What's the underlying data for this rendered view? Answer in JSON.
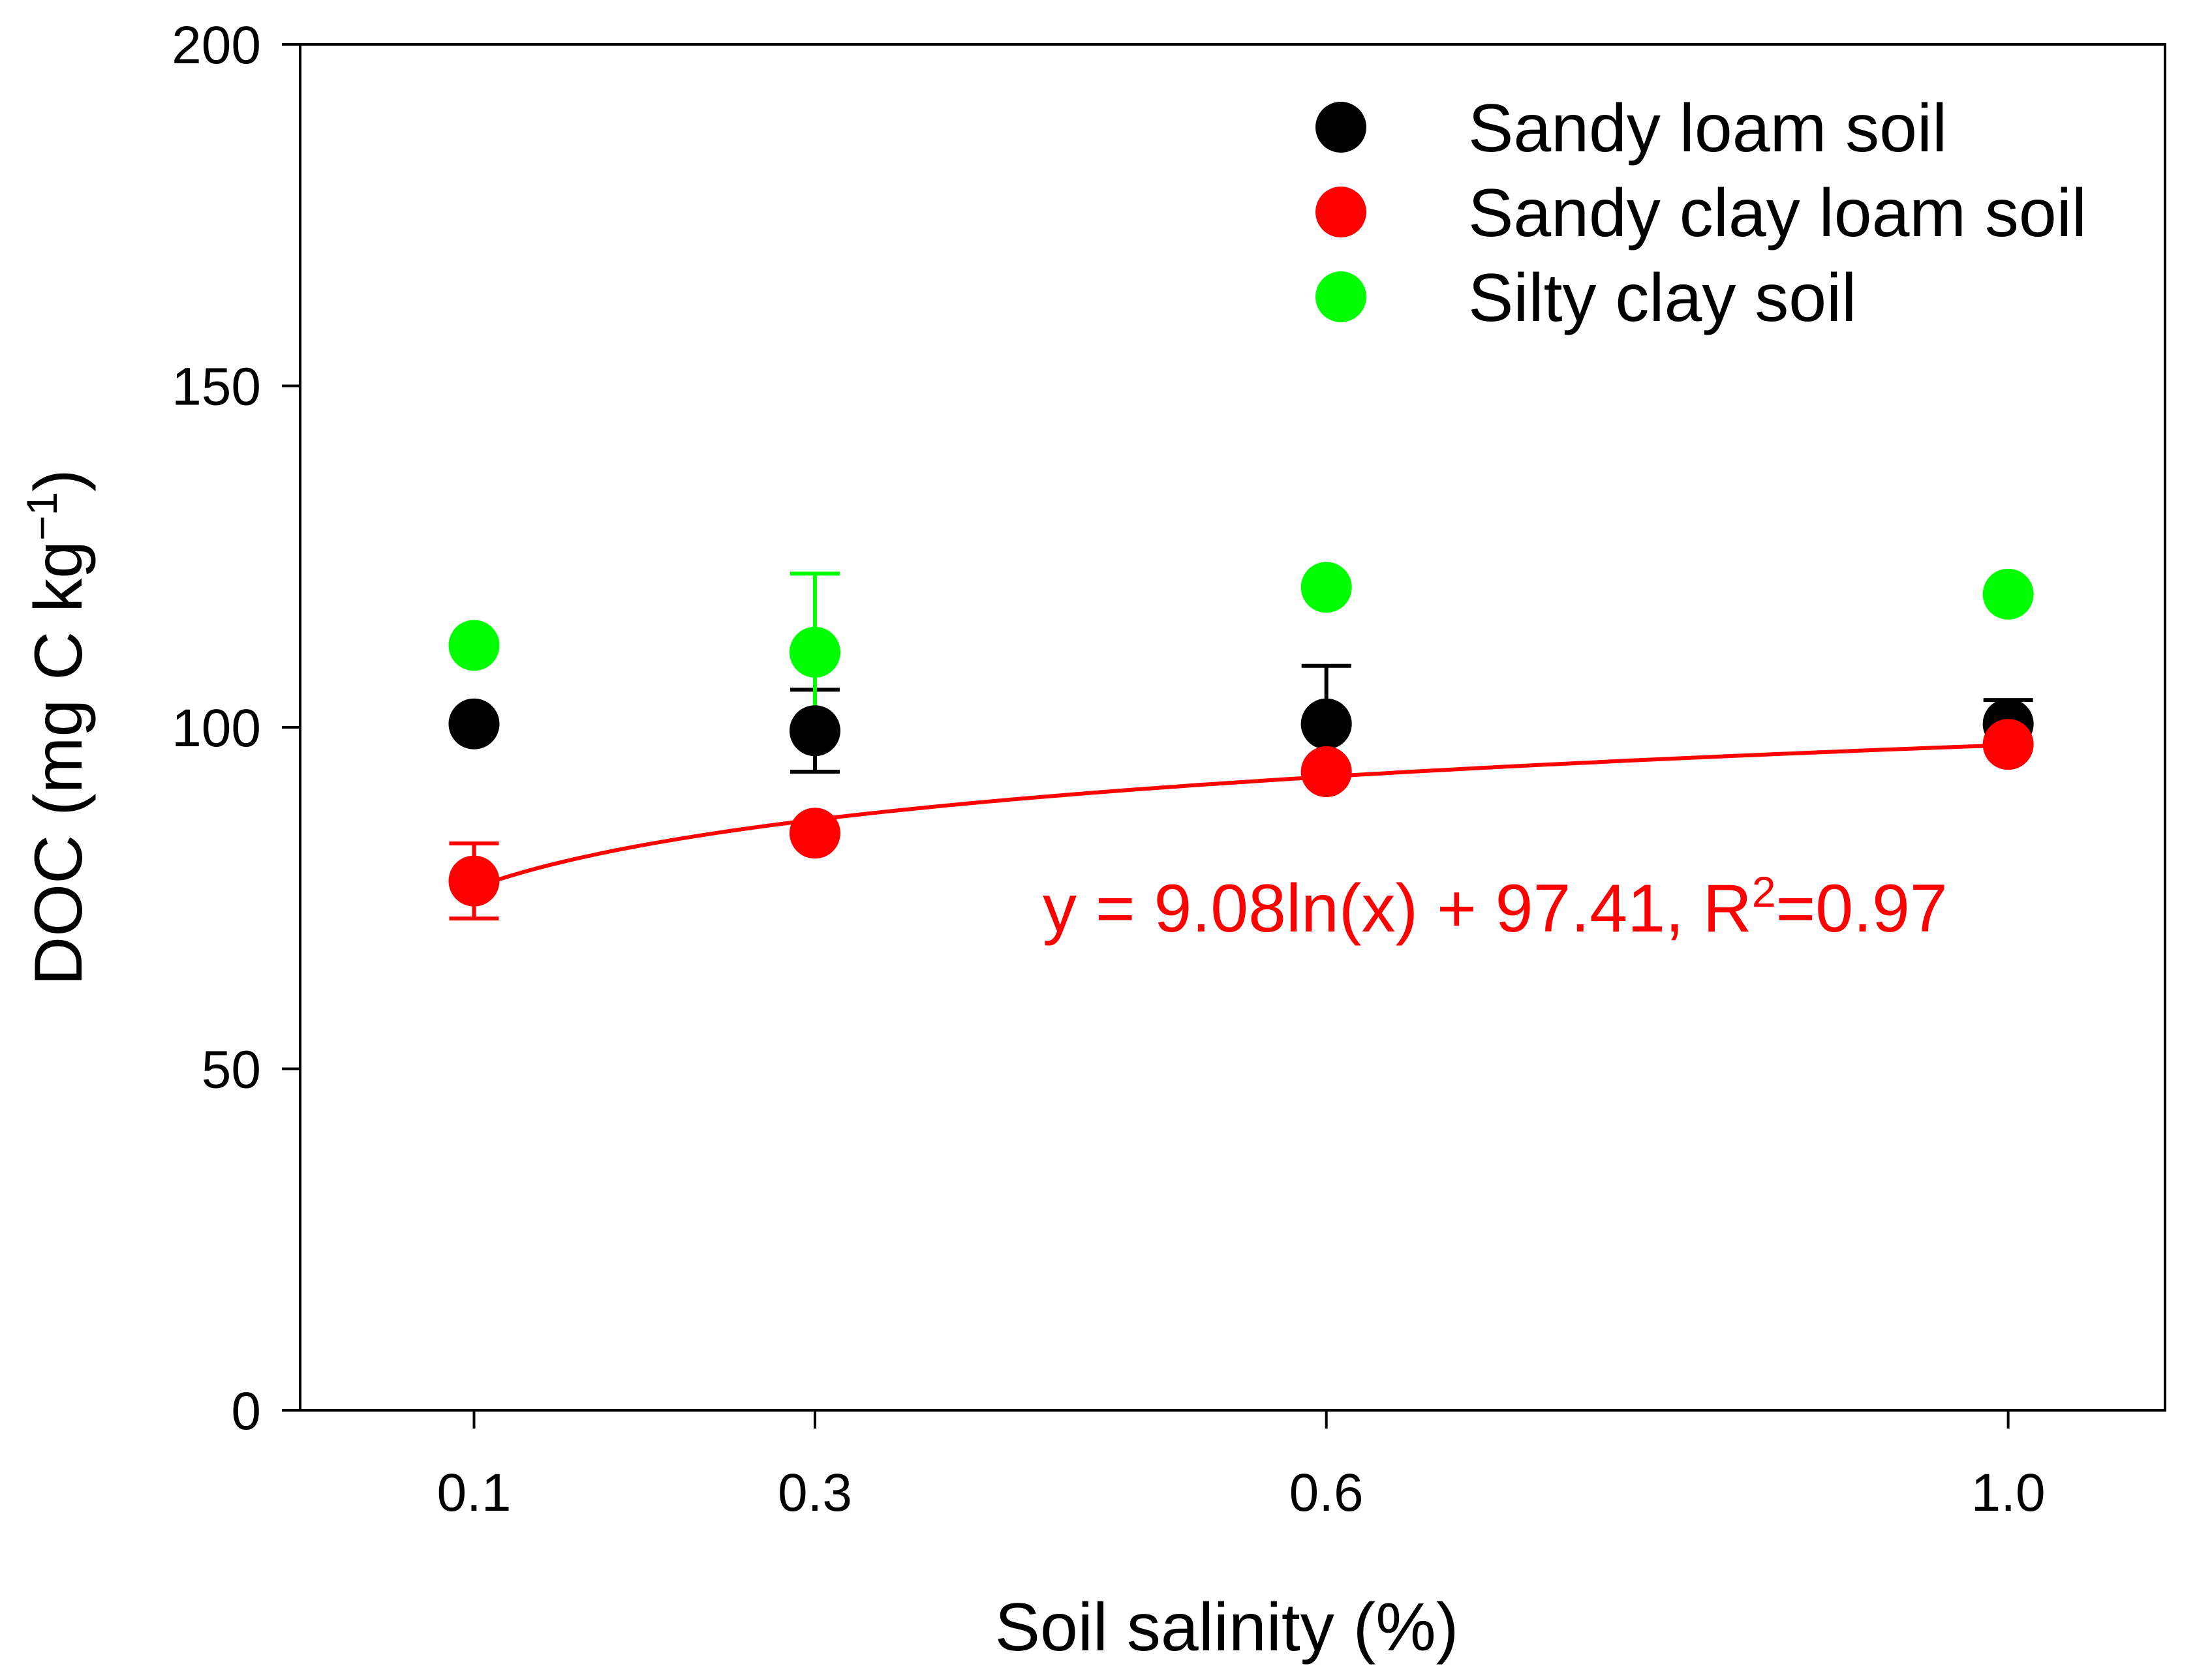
{
  "chart_data": {
    "type": "scatter",
    "title": "",
    "xlabel": "Soil salinity (%)",
    "ylabel": {
      "main": "DOC (mg C kg",
      "sup": "−1",
      "close": ")"
    },
    "x_categories": [
      "0.1",
      "0.3",
      "0.6",
      "1.0"
    ],
    "x_values": [
      0.1,
      0.3,
      0.6,
      1.0
    ],
    "xlim": [
      -0.002,
      1.092
    ],
    "ylim": [
      0,
      200
    ],
    "y_ticks": [
      0,
      50,
      100,
      150,
      200
    ],
    "y_tick_labels": [
      "0",
      "50",
      "100",
      "150",
      "200"
    ],
    "grid": false,
    "legend_position": "top-right",
    "series": [
      {
        "name": "Sandy loam soil",
        "color": "#000000",
        "values": [
          100.5,
          99.5,
          100.5,
          100.5
        ],
        "err_up": [
          0,
          6.0,
          8.5,
          3.5
        ],
        "err_down": [
          0,
          6.0,
          0,
          0
        ]
      },
      {
        "name": "Sandy clay loam soil",
        "color": "#ff0000",
        "values": [
          77.5,
          84.5,
          93.5,
          97.5
        ],
        "err_up": [
          5.5,
          0,
          0,
          0
        ],
        "err_down": [
          5.5,
          0,
          0,
          0
        ]
      },
      {
        "name": "Silty clay soil",
        "color": "#00ff00",
        "values": [
          112.0,
          111.0,
          120.5,
          119.5
        ],
        "err_up": [
          0,
          11.5,
          0,
          0
        ],
        "err_down": [
          0,
          11.5,
          0,
          0
        ]
      }
    ],
    "fit": {
      "series": "Sandy clay loam soil",
      "color": "#ff0000",
      "a": 9.08,
      "b": 97.41,
      "x_range": [
        0.1,
        1.0
      ],
      "equation": {
        "main": "y = 9.08ln(x) + 97.41, R",
        "sup": "2",
        "tail": "=0.97"
      }
    }
  }
}
